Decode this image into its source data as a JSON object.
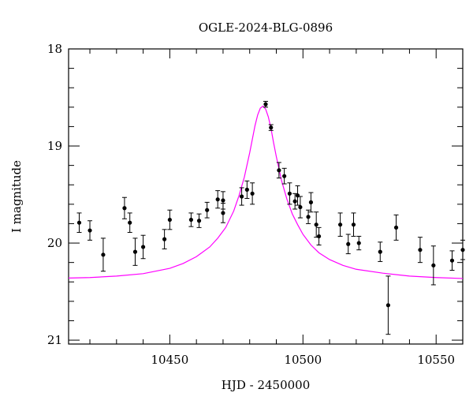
{
  "chart_data": {
    "type": "scatter",
    "title": "OGLE-2024-BLG-0896",
    "xlabel": "HJD - 2450000",
    "ylabel": "I magnitude",
    "xlim": [
      10412,
      10560
    ],
    "ylim": [
      21.04,
      18.0
    ],
    "y_inverted": true,
    "x_major_ticks": [
      10450,
      10500,
      10550
    ],
    "x_minor_step": 10,
    "y_major_ticks": [
      18,
      19,
      20,
      21
    ],
    "y_minor_step": 0.2,
    "x_tick_labels": [
      "10450",
      "10500",
      "10550"
    ],
    "y_tick_labels": [
      "18",
      "19",
      "20",
      "21"
    ],
    "colors": {
      "data": "#000000",
      "model": "#ff00ff"
    },
    "series": [
      {
        "kind": "points_with_errors",
        "x": [
          10416,
          10420,
          10425,
          10433,
          10435,
          10437,
          10440,
          10448,
          10450,
          10458,
          10461,
          10464,
          10468,
          10470,
          10470,
          10477,
          10479,
          10481,
          10486,
          10488,
          10491,
          10493,
          10495,
          10497,
          10498,
          10499,
          10502,
          10503,
          10505,
          10506,
          10514,
          10517,
          10519,
          10521,
          10529,
          10532,
          10535,
          10544,
          10549,
          10556,
          10560
        ],
        "y": [
          19.79,
          19.87,
          20.12,
          19.64,
          19.79,
          20.09,
          20.04,
          19.96,
          19.76,
          19.76,
          19.77,
          19.66,
          19.55,
          19.56,
          19.69,
          19.52,
          19.45,
          19.49,
          18.57,
          18.81,
          19.25,
          19.31,
          19.49,
          19.57,
          19.51,
          19.63,
          19.73,
          19.58,
          19.81,
          19.93,
          19.81,
          20.01,
          19.81,
          20.0,
          20.09,
          20.64,
          19.84,
          20.07,
          20.23,
          20.18,
          20.07
        ],
        "yerr": [
          0.1,
          0.1,
          0.17,
          0.11,
          0.1,
          0.14,
          0.12,
          0.1,
          0.1,
          0.07,
          0.07,
          0.08,
          0.09,
          0.09,
          0.1,
          0.09,
          0.09,
          0.11,
          0.03,
          0.03,
          0.08,
          0.08,
          0.11,
          0.08,
          0.1,
          0.11,
          0.07,
          0.1,
          0.13,
          0.09,
          0.12,
          0.1,
          0.12,
          0.07,
          0.1,
          0.3,
          0.13,
          0.13,
          0.2,
          0.1,
          0.1
        ]
      },
      {
        "kind": "model_curve",
        "x": [
          10412,
          10420,
          10430,
          10440,
          10450,
          10455,
          10460,
          10465,
          10468,
          10471,
          10474,
          10476,
          10478,
          10480,
          10481,
          10482,
          10483,
          10484,
          10485,
          10486,
          10487,
          10488,
          10489,
          10490,
          10492,
          10494,
          10496,
          10498,
          10500,
          10503,
          10506,
          10510,
          10515,
          10520,
          10530,
          10540,
          10550,
          10560
        ],
        "y": [
          20.36,
          20.355,
          20.34,
          20.315,
          20.26,
          20.21,
          20.14,
          20.04,
          19.95,
          19.84,
          19.67,
          19.51,
          19.32,
          19.07,
          18.93,
          18.79,
          18.68,
          18.61,
          18.59,
          18.62,
          18.7,
          18.82,
          18.97,
          19.11,
          19.36,
          19.55,
          19.7,
          19.81,
          19.91,
          20.02,
          20.1,
          20.17,
          20.23,
          20.27,
          20.31,
          20.34,
          20.355,
          20.365
        ]
      }
    ]
  }
}
